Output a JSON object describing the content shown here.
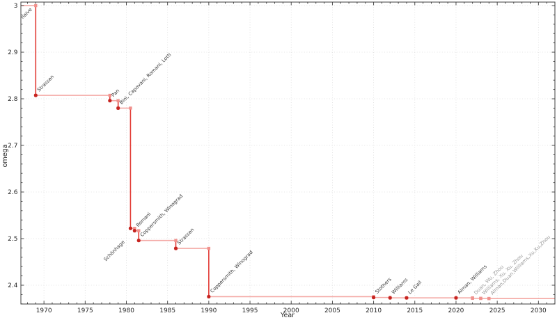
{
  "chart_data": {
    "type": "line",
    "step_style": "post",
    "title": "",
    "xlabel": "Year",
    "ylabel": "omega",
    "xlim": [
      1967.2,
      2032.0
    ],
    "ylim": [
      2.3597,
      3.0075
    ],
    "grid": true,
    "legend": false,
    "x_major_ticks": [
      1970,
      1975,
      1980,
      1985,
      1990,
      1995,
      2000,
      2005,
      2010,
      2015,
      2020,
      2025,
      2030
    ],
    "x_tick_labels": [
      "1970",
      "1975",
      "1980",
      "1985",
      "1990",
      "1995",
      "2000",
      "2005",
      "2010",
      "2015",
      "2020",
      "2025",
      "2030"
    ],
    "x_minor_tick_step": 1,
    "y_major_ticks": [
      3.0,
      2.9,
      2.8,
      2.7,
      2.6,
      2.5,
      2.4
    ],
    "y_tick_labels": [
      "3",
      "2.9",
      "2.8",
      "2.7",
      "2.6",
      "2.5",
      "2.4"
    ],
    "y_minor_tick_step": 0.02,
    "start": {
      "label": "naive",
      "omega": 3.0,
      "label_align": "end",
      "label_offset": [
        -5,
        6
      ]
    },
    "points": [
      {
        "year": 1969,
        "omega": 2.8074,
        "label": "Strassen",
        "emphasis": "solid"
      },
      {
        "year": 1978,
        "omega": 2.796,
        "label": "Pan",
        "emphasis": "solid"
      },
      {
        "year": 1979,
        "omega": 2.78,
        "label": "Bini, Capovani, Romani, Lotti",
        "emphasis": "solid"
      },
      {
        "year": 1980.5,
        "omega": 2.522,
        "label": "Schönhage",
        "emphasis": "solid",
        "label_align": "end",
        "label_offset": [
          -8,
          20
        ]
      },
      {
        "year": 1981,
        "omega": 2.517,
        "label": "Romani",
        "emphasis": "solid"
      },
      {
        "year": 1981.5,
        "omega": 2.496,
        "label": "Coppersmith, Winograd",
        "emphasis": "solid"
      },
      {
        "year": 1986,
        "omega": 2.479,
        "label": "Strassen",
        "emphasis": "solid"
      },
      {
        "year": 1990,
        "omega": 2.3755,
        "label": "Coppersmith, Winograd",
        "emphasis": "solid"
      },
      {
        "year": 2010,
        "omega": 2.3737,
        "label": "Stothers",
        "emphasis": "solid"
      },
      {
        "year": 2012,
        "omega": 2.3729,
        "label": "Williams",
        "emphasis": "solid"
      },
      {
        "year": 2014,
        "omega": 2.37287,
        "label": "Le Gall",
        "emphasis": "solid"
      },
      {
        "year": 2020,
        "omega": 2.37286,
        "label": "Alman, Williams",
        "emphasis": "solid"
      },
      {
        "year": 2022,
        "omega": 2.3719,
        "label": "Duan, Wu, Zhou",
        "emphasis": "faded"
      },
      {
        "year": 2023,
        "omega": 2.3716,
        "label": "Williams, Xu, Xu, Zhou",
        "emphasis": "faded"
      },
      {
        "year": 2024,
        "omega": 2.3713,
        "label": "Alman,Duan,Williams,Xu,Xu,Zhou",
        "emphasis": "faded"
      }
    ]
  },
  "colors": {
    "background": "#ffffff",
    "hold_line": "#f4a9a5",
    "drop_line": "#e23b35",
    "point_marker": "#c62420",
    "corner_marker": "#f0918d",
    "label_dark": "#3a3a3a",
    "label_faded": "#9a9a9a",
    "grid": "#dcdcdc",
    "axis": "#3c3c3c",
    "tick_text": "#262626"
  }
}
